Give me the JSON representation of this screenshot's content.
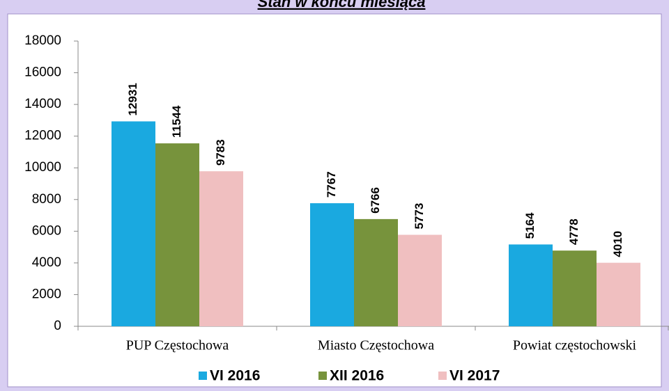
{
  "chart_data": {
    "type": "bar",
    "title": "Stan w końcu miesiąca",
    "categories": [
      "PUP Częstochowa",
      "Miasto Częstochowa",
      "Powiat częstochowski"
    ],
    "series": [
      {
        "name": "VI 2016",
        "color": "#1aa9e0",
        "values": [
          12931,
          7767,
          5164
        ]
      },
      {
        "name": "XII 2016",
        "color": "#77933c",
        "values": [
          11544,
          6766,
          4778
        ]
      },
      {
        "name": "VI 2017",
        "color": "#f0bfc0",
        "values": [
          9783,
          5773,
          4010
        ]
      }
    ],
    "ylim": [
      0,
      18000
    ],
    "yticks": [
      0,
      2000,
      4000,
      6000,
      8000,
      10000,
      12000,
      14000,
      16000,
      18000
    ],
    "legend": "bottom"
  }
}
